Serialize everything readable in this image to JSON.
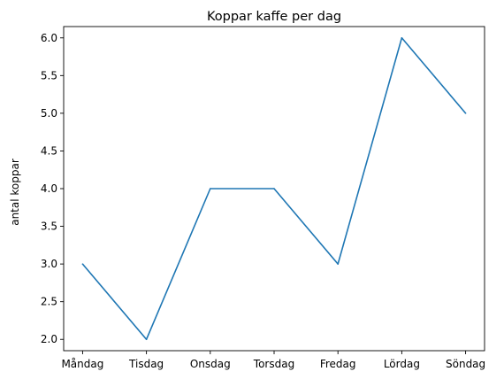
{
  "chart_data": {
    "type": "line",
    "title": "Koppar kaffe per dag",
    "xlabel": "",
    "ylabel": "antal koppar",
    "categories": [
      "Måndag",
      "Tisdag",
      "Onsdag",
      "Torsdag",
      "Fredag",
      "Lördag",
      "Söndag"
    ],
    "series": [
      {
        "values": [
          3,
          2,
          4,
          4,
          3,
          6,
          5
        ],
        "color": "#1f77b4"
      }
    ],
    "ylim": [
      1.85,
      6.15
    ],
    "yticks": [
      "2.0",
      "2.5",
      "3.0",
      "3.5",
      "4.0",
      "4.5",
      "5.0",
      "5.5",
      "6.0"
    ],
    "grid": false,
    "legend": "none"
  }
}
